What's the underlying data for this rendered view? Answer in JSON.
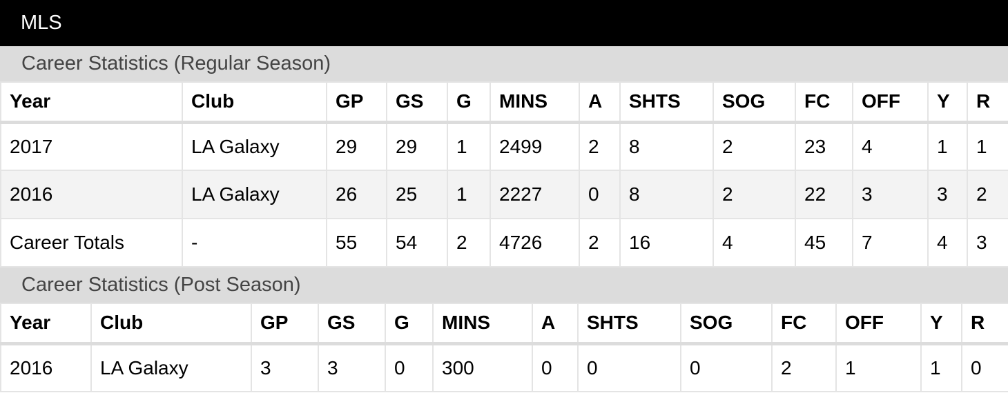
{
  "header": {
    "title": "MLS"
  },
  "tables": [
    {
      "caption": "Career Statistics (Regular Season)",
      "columns": [
        "Year",
        "Club",
        "GP",
        "GS",
        "G",
        "MINS",
        "A",
        "SHTS",
        "SOG",
        "FC",
        "OFF",
        "Y",
        "R"
      ],
      "rows": [
        [
          2017,
          "LA Galaxy",
          29,
          29,
          1,
          2499,
          2,
          8,
          2,
          23,
          4,
          1,
          1
        ],
        [
          2016,
          "LA Galaxy",
          26,
          25,
          1,
          2227,
          0,
          8,
          2,
          22,
          3,
          3,
          2
        ],
        [
          "Career Totals",
          "-",
          55,
          54,
          2,
          4726,
          2,
          16,
          4,
          45,
          7,
          4,
          3
        ]
      ]
    },
    {
      "caption": "Career Statistics (Post Season)",
      "columns": [
        "Year",
        "Club",
        "GP",
        "GS",
        "G",
        "MINS",
        "A",
        "SHTS",
        "SOG",
        "FC",
        "OFF",
        "Y",
        "R"
      ],
      "rows": [
        [
          2016,
          "LA Galaxy",
          3,
          3,
          0,
          300,
          0,
          0,
          0,
          2,
          1,
          1,
          0
        ]
      ]
    }
  ]
}
